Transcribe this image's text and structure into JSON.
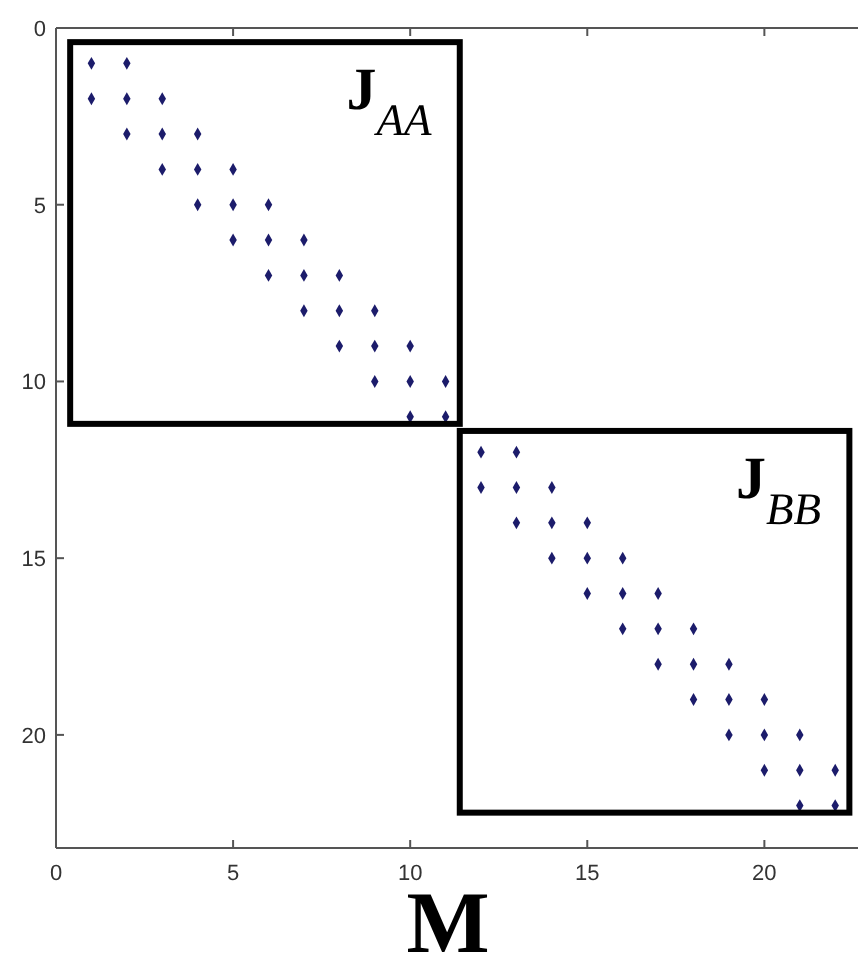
{
  "chart_data": {
    "type": "scatter",
    "xlabel": "M",
    "xlim": [
      0,
      22.7
    ],
    "ylim": [
      23.2,
      0
    ],
    "xticks": [
      0,
      5,
      10,
      15,
      20
    ],
    "yticks": [
      0,
      5,
      10,
      15,
      20
    ],
    "grid": false,
    "marker": "diamond",
    "annotations": [
      "J$_{AA}$",
      "J$_{BB}$"
    ],
    "series": [
      {
        "color": "#1c1c6b",
        "x": [
          1,
          2,
          1,
          2,
          3,
          2,
          3,
          4,
          3,
          4,
          5,
          4,
          5,
          6,
          5,
          6,
          7,
          6,
          7,
          8,
          7,
          8,
          9,
          8,
          9,
          10,
          9,
          10,
          11,
          10,
          11
        ],
        "values": [
          1,
          1,
          2,
          2,
          2,
          3,
          3,
          3,
          4,
          4,
          4,
          5,
          5,
          5,
          6,
          6,
          6,
          7,
          7,
          7,
          8,
          8,
          8,
          9,
          9,
          9,
          10,
          10,
          10,
          11,
          11
        ]
      },
      {
        "color": "#1c1c6b",
        "x": [
          12,
          13,
          12,
          13,
          14,
          13,
          14,
          15,
          14,
          15,
          16,
          15,
          16,
          17,
          16,
          17,
          18,
          17,
          18,
          19,
          18,
          19,
          20,
          19,
          20,
          21,
          20,
          21,
          22,
          21,
          22
        ],
        "values": [
          12,
          12,
          13,
          13,
          13,
          14,
          14,
          14,
          15,
          15,
          15,
          16,
          16,
          16,
          17,
          17,
          17,
          18,
          18,
          18,
          19,
          19,
          19,
          20,
          20,
          20,
          21,
          21,
          21,
          22,
          22
        ]
      }
    ]
  }
}
